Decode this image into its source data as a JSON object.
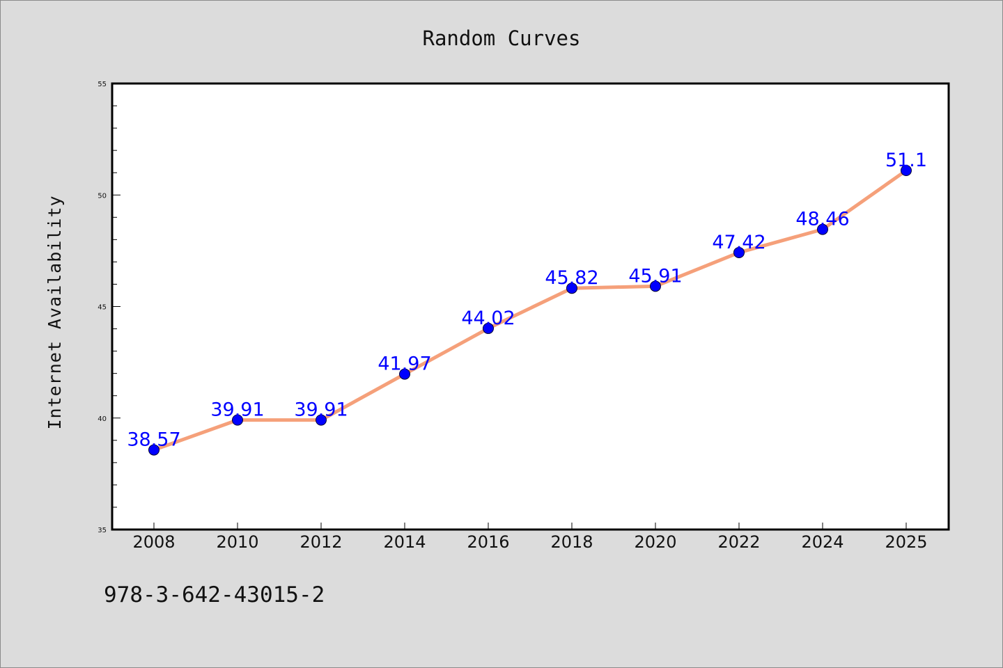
{
  "chart_data": {
    "type": "line",
    "title": "Random Curves",
    "xlabel": "",
    "ylabel": "Internet Availability",
    "categories": [
      "2008",
      "2010",
      "2012",
      "2014",
      "2016",
      "2018",
      "2020",
      "2022",
      "2024",
      "2025"
    ],
    "series": [
      {
        "values": [
          38.57,
          39.91,
          39.91,
          41.97,
          44.02,
          45.82,
          45.91,
          47.42,
          48.46,
          51.1
        ],
        "labels": [
          "38.57",
          "39.91",
          "39.91",
          "41.97",
          "44.02",
          "45.82",
          "45.91",
          "47.42",
          "48.46",
          "51.1"
        ],
        "line_color": "#f5a07a",
        "marker_color": "#0000ff",
        "label_color": "#0000ff"
      }
    ],
    "ylim": [
      35,
      55
    ],
    "yticks": [
      "35",
      "40",
      "45",
      "50",
      "55"
    ],
    "grid": false,
    "legend": "none"
  },
  "footnote": "978-3-642-43015-2"
}
